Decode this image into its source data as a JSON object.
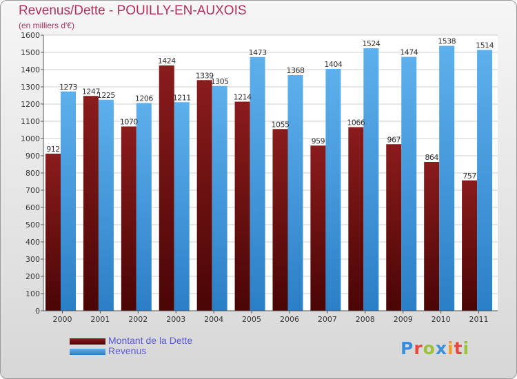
{
  "title": "Revenus/Dette - POUILLY-EN-AUXOIS",
  "subtitle": "(en milliers d'€)",
  "colors": {
    "dette": "#7a1414",
    "revenus": "#4da3e3",
    "title": "#b0305a",
    "legend_text": "#5a5adc"
  },
  "logo": {
    "text": "Proxiti",
    "letter_colors": [
      "#3a8fd8",
      "#e8463c",
      "#9bc23a",
      "#3a8fd8",
      "#f0a020",
      "#e8463c",
      "#9bc23a"
    ]
  },
  "chart_data": {
    "type": "bar",
    "categories": [
      "2000",
      "2001",
      "2002",
      "2003",
      "2004",
      "2005",
      "2006",
      "2007",
      "2008",
      "2009",
      "2010",
      "2011"
    ],
    "series": [
      {
        "name": "Montant de la Dette",
        "values": [
          912,
          1247,
          1070,
          1424,
          1339,
          1214,
          1055,
          959,
          1066,
          967,
          864,
          757
        ]
      },
      {
        "name": "Revenus",
        "values": [
          1273,
          1225,
          1206,
          1211,
          1305,
          1473,
          1368,
          1404,
          1524,
          1474,
          1538,
          1514
        ]
      }
    ],
    "ylim": [
      0,
      1600
    ],
    "yticks": [
      0,
      100,
      200,
      300,
      400,
      500,
      600,
      700,
      800,
      900,
      1000,
      1100,
      1200,
      1300,
      1400,
      1500,
      1600
    ],
    "grid": true,
    "legend": "bottom-left"
  }
}
